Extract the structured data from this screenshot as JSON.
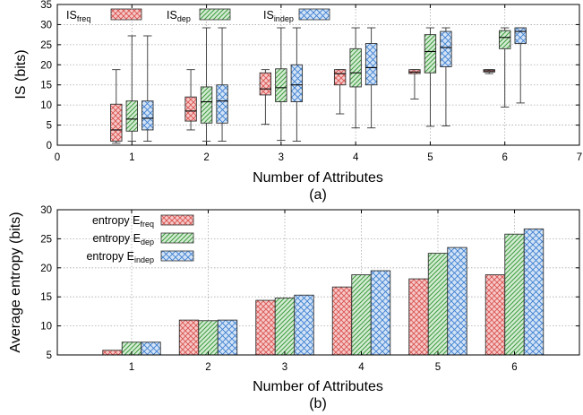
{
  "panel_a_label": "(a)",
  "panel_b_label": "(b)",
  "legend_a": [
    {
      "base": "IS",
      "sub": "freq"
    },
    {
      "base": "IS",
      "sub": "dep"
    },
    {
      "base": "IS",
      "sub": "indep"
    }
  ],
  "legend_b": [
    {
      "base": "entropy E",
      "sub": "freq"
    },
    {
      "base": "entropy E",
      "sub": "dep"
    },
    {
      "base": "entropy E",
      "sub": "indep"
    }
  ],
  "colors": {
    "freq": "#d9534f",
    "dep": "#3c9b3c",
    "indep": "#3c7fd0"
  },
  "chart_data": [
    {
      "type": "box",
      "xlabel": "Number of Attributes",
      "ylabel": "IS (bits)",
      "xlim": [
        0,
        7
      ],
      "ylim": [
        0,
        35
      ],
      "xticks": [
        0,
        1,
        2,
        3,
        4,
        5,
        6,
        7
      ],
      "yticks": [
        0,
        5,
        10,
        15,
        20,
        25,
        30,
        35
      ],
      "grid": true,
      "legend_position": "top-left",
      "categories": [
        1,
        2,
        3,
        4,
        5,
        6
      ],
      "series": [
        {
          "key": "freq",
          "boxes": [
            {
              "min": 0.5,
              "q1": 1,
              "median": 3.8,
              "q3": 10.2,
              "max": 18.8
            },
            {
              "min": 3.8,
              "q1": 6,
              "median": 8.5,
              "q3": 12,
              "max": 18.8
            },
            {
              "min": 5.2,
              "q1": 12.5,
              "median": 14,
              "q3": 18,
              "max": 18.8
            },
            {
              "min": 7.8,
              "q1": 15,
              "median": 17.8,
              "q3": 18.8,
              "max": 18.8
            },
            {
              "min": 11.5,
              "q1": 17.8,
              "median": 18.2,
              "q3": 18.8,
              "max": 18.8
            },
            {
              "min": 17.8,
              "q1": 18.2,
              "median": 18.5,
              "q3": 18.8,
              "max": 18.8
            }
          ]
        },
        {
          "key": "dep",
          "boxes": [
            {
              "min": 1,
              "q1": 3.5,
              "median": 6.5,
              "q3": 11,
              "max": 27.2
            },
            {
              "min": 1,
              "q1": 5.5,
              "median": 10.8,
              "q3": 14.5,
              "max": 29.2
            },
            {
              "min": 1.2,
              "q1": 10.8,
              "median": 14.3,
              "q3": 19,
              "max": 29.2
            },
            {
              "min": 4.3,
              "q1": 14.5,
              "median": 18,
              "q3": 24,
              "max": 29.2
            },
            {
              "min": 4.7,
              "q1": 18,
              "median": 23.3,
              "q3": 27.5,
              "max": 29.2
            },
            {
              "min": 9.5,
              "q1": 24,
              "median": 26.8,
              "q3": 28.5,
              "max": 29.2
            }
          ]
        },
        {
          "key": "indep",
          "boxes": [
            {
              "min": 1,
              "q1": 3.8,
              "median": 6.7,
              "q3": 11,
              "max": 27.2
            },
            {
              "min": 1,
              "q1": 5.5,
              "median": 11,
              "q3": 15,
              "max": 29.2
            },
            {
              "min": 1,
              "q1": 10.8,
              "median": 15,
              "q3": 20,
              "max": 29.2
            },
            {
              "min": 4.3,
              "q1": 15,
              "median": 19.3,
              "q3": 25.3,
              "max": 29.2
            },
            {
              "min": 4.8,
              "q1": 19.5,
              "median": 24.3,
              "q3": 28.3,
              "max": 29.2
            },
            {
              "min": 10.5,
              "q1": 25.3,
              "median": 28.3,
              "q3": 29.2,
              "max": 29.2
            }
          ]
        }
      ]
    },
    {
      "type": "bar",
      "xlabel": "Number of Attributes",
      "ylabel": "Average entropy (bits)",
      "ylim": [
        5,
        30
      ],
      "yticks": [
        5,
        10,
        15,
        20,
        25,
        30
      ],
      "grid": true,
      "legend_position": "top-left",
      "categories": [
        "1",
        "2",
        "3",
        "4",
        "5",
        "6"
      ],
      "series": [
        {
          "key": "freq",
          "values": [
            5.8,
            11.0,
            14.4,
            16.7,
            18.1,
            18.8
          ]
        },
        {
          "key": "dep",
          "values": [
            7.2,
            10.9,
            14.8,
            18.8,
            22.5,
            25.8
          ]
        },
        {
          "key": "indep",
          "values": [
            7.2,
            11.0,
            15.3,
            19.5,
            23.5,
            26.7
          ]
        }
      ]
    }
  ]
}
